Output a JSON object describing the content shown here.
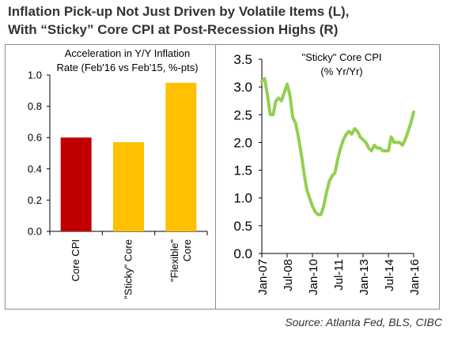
{
  "header": {
    "title_line1": "Inflation Pick-up Not Just Driven by Volatile Items (L),",
    "title_line2": "With “Sticky” Core CPI at Post-Recession Highs (R)"
  },
  "footer": {
    "source": "Source: Atlanta Fed, BLS, CIBC"
  },
  "chart_data": [
    {
      "type": "bar",
      "title": "Acceleration in Y/Y Inflation Rate (Feb'16 vs Feb'15, %-pts)",
      "title_lines": [
        "Acceleration in Y/Y Inflation",
        "Rate (Feb'16 vs Feb'15, %-pts)"
      ],
      "categories": [
        "Core CPI",
        "\"Sticky\" Core",
        "\"Flexible\" Core"
      ],
      "category_lines": [
        [
          "Core CPI"
        ],
        [
          "\"Sticky\" Core"
        ],
        [
          "\"Flexible\"",
          "Core"
        ]
      ],
      "values": [
        0.6,
        0.57,
        0.95
      ],
      "colors": [
        "#c00000",
        "#ffc000",
        "#ffc000"
      ],
      "ylim": [
        0.0,
        1.0
      ],
      "yticks": [
        "0.0",
        "0.2",
        "0.4",
        "0.6",
        "0.8",
        "1.0"
      ],
      "grid": false
    },
    {
      "type": "line",
      "title": "\"Sticky\" Core CPI (% Yr/Yr)",
      "title_lines": [
        "\"Sticky\" Core CPI",
        "(% Yr/Yr)"
      ],
      "xlim": [
        "2007-01",
        "2016-01"
      ],
      "xticks": [
        {
          "date": "2007-01",
          "label": "Jan-07"
        },
        {
          "date": "2008-07",
          "label": "Jul-08"
        },
        {
          "date": "2010-01",
          "label": "Jan-10"
        },
        {
          "date": "2011-07",
          "label": "Jul-11"
        },
        {
          "date": "2013-01",
          "label": "Jan-13"
        },
        {
          "date": "2014-07",
          "label": "Jul-14"
        },
        {
          "date": "2016-01",
          "label": "Jan-16"
        }
      ],
      "ylim": [
        0.0,
        3.5
      ],
      "yticks": [
        "0.0",
        "0.5",
        "1.0",
        "1.5",
        "2.0",
        "2.5",
        "3.0",
        "3.5"
      ],
      "grid": false,
      "series": [
        {
          "color": "#92d050",
          "x": [
            "2007-01",
            "2007-03",
            "2007-05",
            "2007-07",
            "2007-09",
            "2007-11",
            "2008-01",
            "2008-03",
            "2008-05",
            "2008-07",
            "2008-09",
            "2008-11",
            "2009-01",
            "2009-03",
            "2009-05",
            "2009-07",
            "2009-09",
            "2009-11",
            "2010-01",
            "2010-03",
            "2010-05",
            "2010-07",
            "2010-09",
            "2010-11",
            "2011-01",
            "2011-03",
            "2011-05",
            "2011-07",
            "2011-09",
            "2011-11",
            "2012-01",
            "2012-03",
            "2012-05",
            "2012-07",
            "2012-09",
            "2012-11",
            "2013-01",
            "2013-03",
            "2013-05",
            "2013-07",
            "2013-09",
            "2013-11",
            "2014-01",
            "2014-03",
            "2014-05",
            "2014-07",
            "2014-09",
            "2014-11",
            "2015-01",
            "2015-03",
            "2015-05",
            "2015-07",
            "2015-09",
            "2015-11",
            "2016-01"
          ],
          "y": [
            3.1,
            3.15,
            2.85,
            2.5,
            2.5,
            2.75,
            2.8,
            2.75,
            2.9,
            3.05,
            2.85,
            2.45,
            2.35,
            2.1,
            1.8,
            1.45,
            1.15,
            1.0,
            0.85,
            0.75,
            0.7,
            0.7,
            0.85,
            1.1,
            1.3,
            1.4,
            1.45,
            1.7,
            1.9,
            2.05,
            2.15,
            2.2,
            2.15,
            2.25,
            2.2,
            2.1,
            2.05,
            2.0,
            1.9,
            1.85,
            1.95,
            1.9,
            1.9,
            1.85,
            1.85,
            1.85,
            2.1,
            2.0,
            2.0,
            2.0,
            1.95,
            2.05,
            2.2,
            2.35,
            2.55
          ]
        }
      ]
    }
  ]
}
